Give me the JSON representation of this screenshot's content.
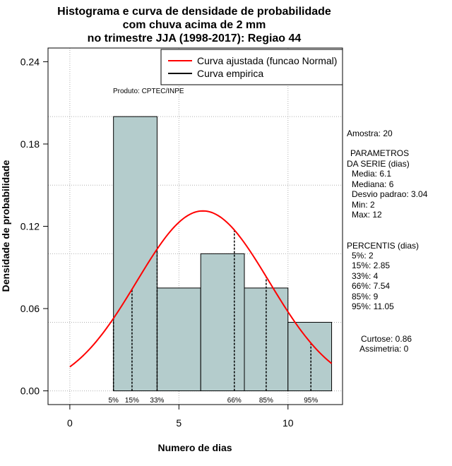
{
  "chart_data": {
    "type": "histogram",
    "title_lines": [
      "Histograma e curva de densidade de probabilidade",
      "com chuva acima de 2 mm",
      "no trimestre JJA (1998-2017): Regiao 44"
    ],
    "xlabel": "Numero de dias",
    "ylabel": "Densidade de probabilidade",
    "xlim": [
      -1,
      12.5
    ],
    "ylim": [
      -0.01,
      0.25
    ],
    "x_ticks": [
      0,
      5,
      10
    ],
    "y_ticks": [
      0.0,
      0.06,
      0.12,
      0.18,
      0.24
    ],
    "y_tick_labels": [
      "0.00",
      "0.06",
      "0.12",
      "0.18",
      "0.24"
    ],
    "grid": true,
    "bar_color": "#b4cccc",
    "bins": [
      {
        "x0": 2,
        "x1": 4,
        "density": 0.2
      },
      {
        "x0": 4,
        "x1": 6,
        "density": 0.075
      },
      {
        "x0": 6,
        "x1": 8,
        "density": 0.1
      },
      {
        "x0": 8,
        "x1": 10,
        "density": 0.075
      },
      {
        "x0": 10,
        "x1": 12,
        "density": 0.05
      }
    ],
    "normal_curve": {
      "name": "Curva ajustada (funcao Normal)",
      "color": "#ff0000",
      "mean": 6.1,
      "sd": 3.04,
      "x_range": [
        0,
        12
      ]
    },
    "empirical_curve": {
      "name": "Curva empirica",
      "color": "#000000"
    },
    "percentiles": [
      {
        "label": "5%",
        "x": 2
      },
      {
        "label": "15%",
        "x": 2.85
      },
      {
        "label": "33%",
        "x": 4
      },
      {
        "label": "66%",
        "x": 7.54
      },
      {
        "label": "85%",
        "x": 9
      },
      {
        "label": "95%",
        "x": 11.05
      }
    ],
    "annotation": "Produto: CPTEC/INPE",
    "legend_position": "top-right"
  },
  "side_panel": {
    "amostra": "Amostra: 20",
    "param_header1": "PARAMETROS",
    "param_header2": "DA SERIE (dias)",
    "media": "Media: 6.1",
    "mediana": "Mediana: 6",
    "desvio": "Desvio padrao: 3.04",
    "min": "Min: 2",
    "max": "Max: 12",
    "perc_header": "PERCENTIS (dias)",
    "p5": "5%: 2",
    "p15": "15%: 2.85",
    "p33": "33%: 4",
    "p66": "66%: 7.54",
    "p85": "85%: 9",
    "p95": "95%: 11.05",
    "curtose": "Curtose: 0.86",
    "assimetria": "Assimetria: 0"
  }
}
